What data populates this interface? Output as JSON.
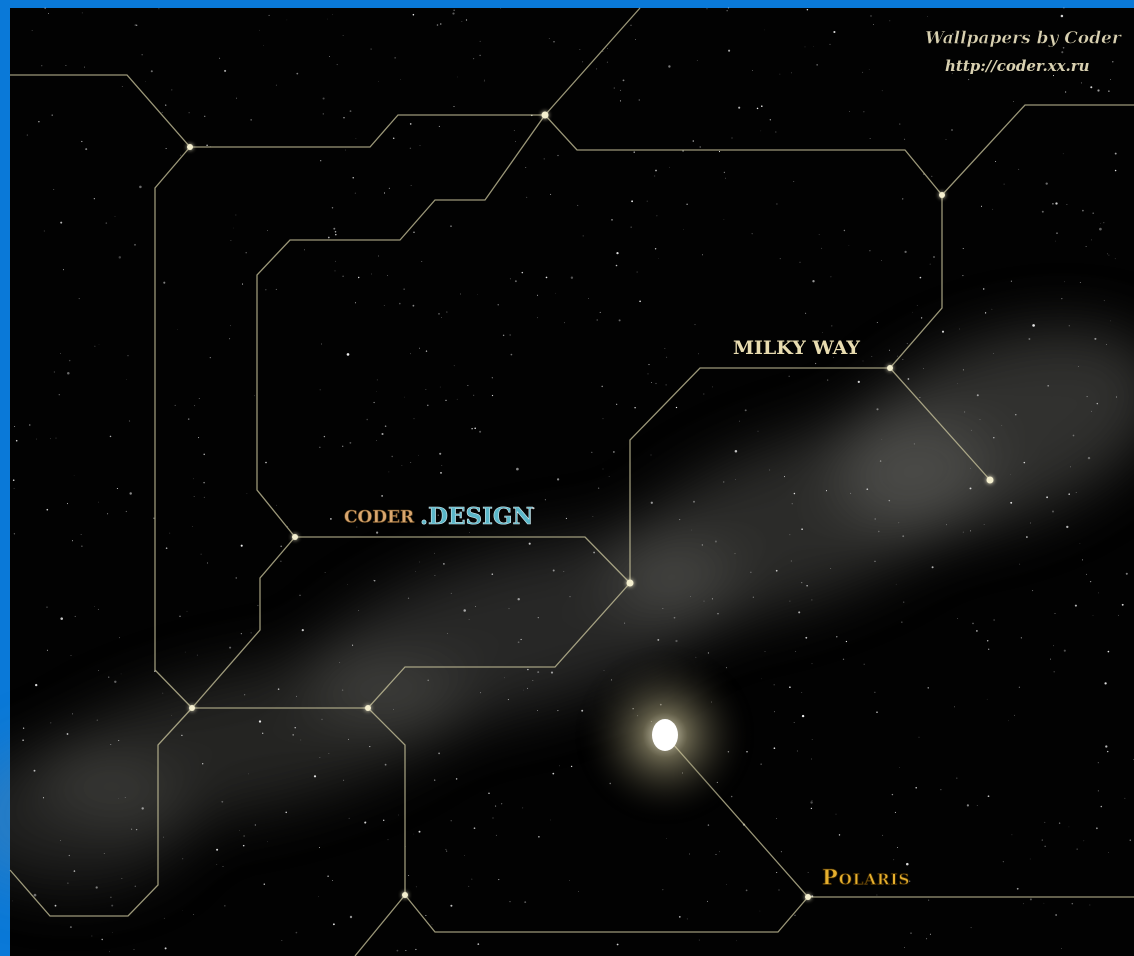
{
  "watermark": {
    "line1": "Wallpapers by Coder",
    "line2": "http://coder.xx.ru"
  },
  "labels": {
    "milky_way": "MILKY WAY",
    "coder": "CODER",
    "design": ".DESIGN",
    "polaris": "Polaris"
  }
}
